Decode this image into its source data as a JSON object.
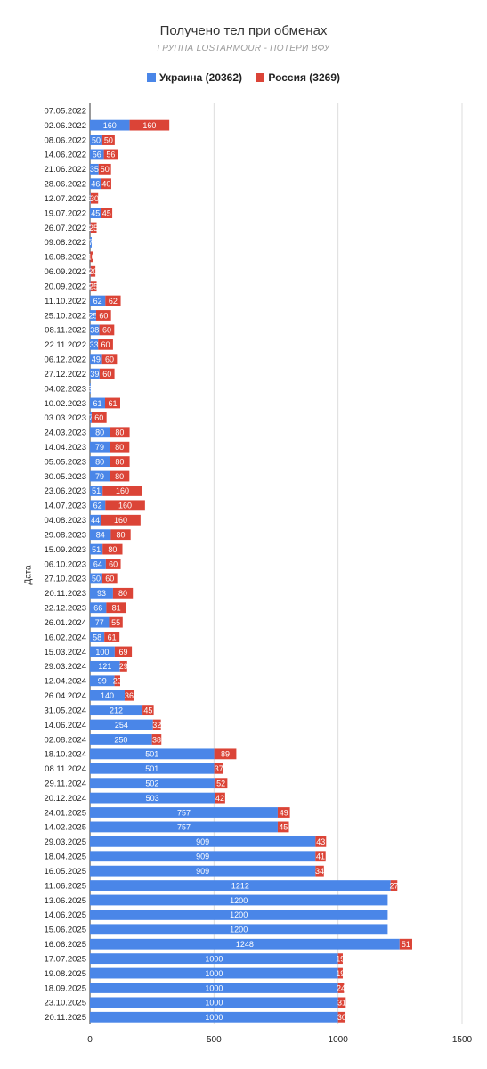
{
  "colors": {
    "ukraine": "#4a86e8",
    "russia": "#db4437",
    "grid": "#dddddd"
  },
  "chart_data": {
    "type": "bar",
    "orientation": "horizontal",
    "stacked": true,
    "title": "Получено тел при обменах",
    "subtitle": "ГРУППА LOSTARMOUR - ПОТЕРИ ВФУ",
    "ylabel": "Дата",
    "xlabel": "",
    "xlim": [
      0,
      1500
    ],
    "xticks": [
      0,
      500,
      1000,
      1500
    ],
    "grid": true,
    "legend_position": "top",
    "categories": [
      "07.05.2022",
      "02.06.2022",
      "08.06.2022",
      "14.06.2022",
      "21.06.2022",
      "28.06.2022",
      "12.07.2022",
      "19.07.2022",
      "26.07.2022",
      "09.08.2022",
      "16.08.2022",
      "06.09.2022",
      "20.09.2022",
      "11.10.2022",
      "25.10.2022",
      "08.11.2022",
      "22.11.2022",
      "06.12.2022",
      "27.12.2022",
      "04.02.2023",
      "10.02.2023",
      "03.03.2023",
      "24.03.2023",
      "14.04.2023",
      "05.05.2023",
      "30.05.2023",
      "23.06.2023",
      "14.07.2023",
      "04.08.2023",
      "29.08.2023",
      "15.09.2023",
      "06.10.2023",
      "27.10.2023",
      "20.11.2023",
      "22.12.2023",
      "26.01.2024",
      "16.02.2024",
      "15.03.2024",
      "29.03.2024",
      "12.04.2024",
      "26.04.2024",
      "31.05.2024",
      "14.06.2024",
      "02.08.2024",
      "18.10.2024",
      "08.11.2024",
      "29.11.2024",
      "20.12.2024",
      "24.01.2025",
      "14.02.2025",
      "29.03.2025",
      "18.04.2025",
      "16.05.2025",
      "11.06.2025",
      "13.06.2025",
      "14.06.2025",
      "15.06.2025",
      "16.06.2025",
      "17.07.2025",
      "19.08.2025",
      "18.09.2025",
      "23.10.2025",
      "20.11.2025"
    ],
    "series": [
      {
        "name": "Украина (20362)",
        "values": [
          0,
          160,
          50,
          56,
          35,
          46,
          3,
          45,
          2,
          7,
          1,
          2,
          2,
          62,
          25,
          38,
          33,
          49,
          39,
          3,
          61,
          7,
          80,
          79,
          80,
          79,
          51,
          62,
          44,
          84,
          51,
          64,
          50,
          93,
          66,
          77,
          58,
          100,
          121,
          99,
          140,
          212,
          254,
          250,
          501,
          501,
          502,
          503,
          757,
          757,
          909,
          909,
          909,
          1212,
          1200,
          1200,
          1200,
          1248,
          1000,
          1000,
          1000,
          1000,
          1000
        ]
      },
      {
        "name": "Россия (3269)",
        "values": [
          0,
          160,
          50,
          56,
          50,
          40,
          30,
          45,
          25,
          0,
          10,
          20,
          25,
          62,
          60,
          60,
          60,
          60,
          60,
          0,
          61,
          60,
          80,
          80,
          80,
          80,
          160,
          160,
          160,
          80,
          80,
          60,
          60,
          80,
          81,
          55,
          61,
          69,
          29,
          23,
          36,
          45,
          32,
          38,
          89,
          37,
          52,
          42,
          49,
          45,
          43,
          41,
          34,
          27,
          0,
          0,
          0,
          51,
          19,
          19,
          24,
          31,
          30
        ]
      }
    ]
  }
}
